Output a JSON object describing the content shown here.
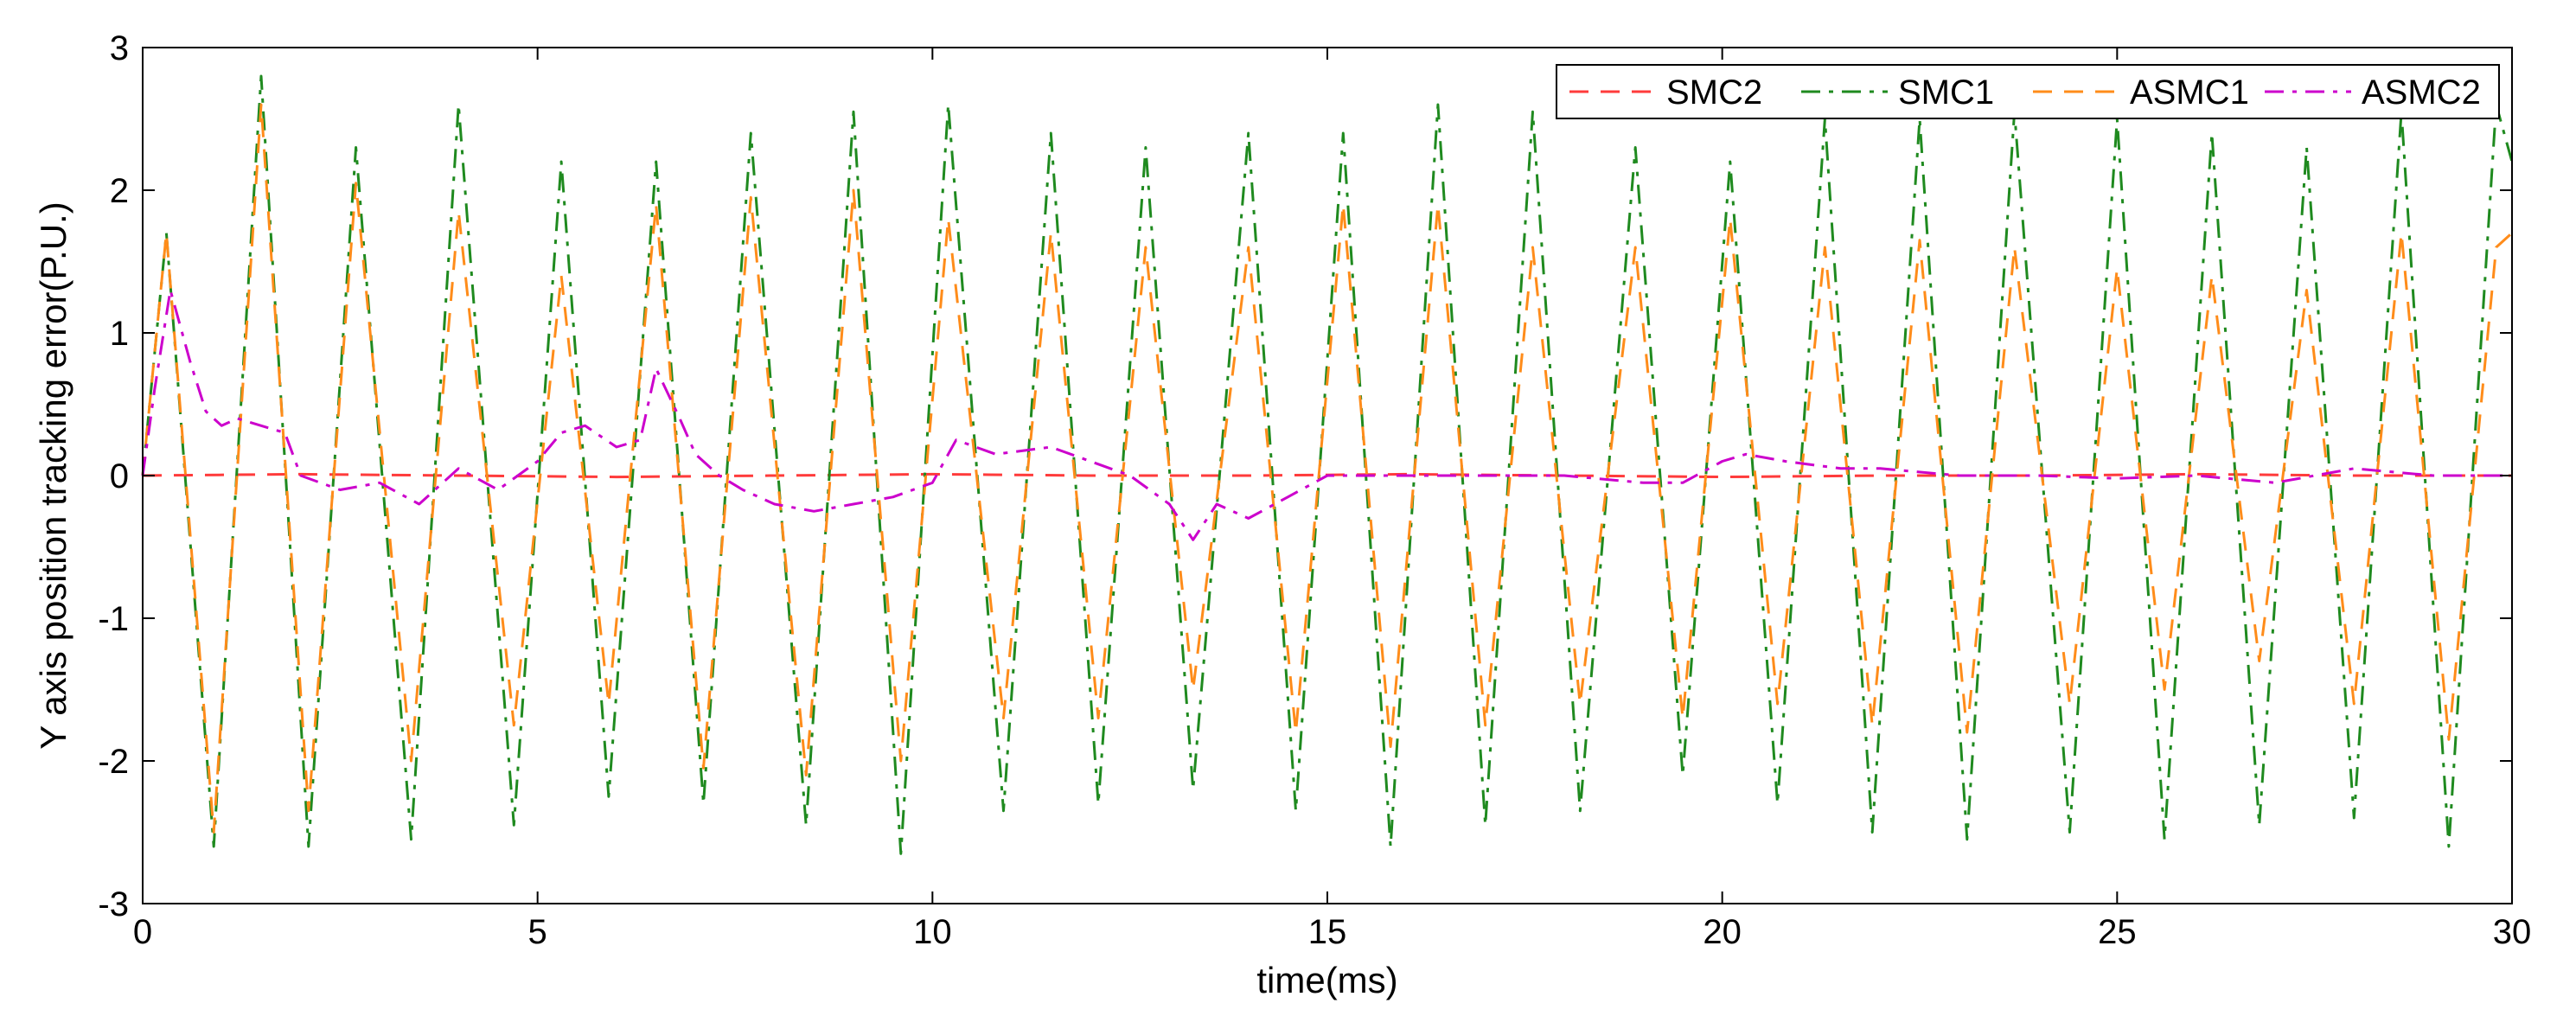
{
  "chart_data": {
    "type": "line",
    "title": "",
    "xlabel": "time(ms)",
    "ylabel": "Y axis position tracking error(P.U.)",
    "xlim": [
      0,
      30
    ],
    "ylim": [
      -3,
      3
    ],
    "x_ticks": [
      0,
      5,
      10,
      15,
      20,
      25,
      30
    ],
    "x_tick_labels": [
      "0",
      "5",
      "10",
      "15",
      "20",
      "25",
      "30"
    ],
    "y_ticks": [
      -3,
      -2,
      -1,
      0,
      1,
      2,
      3
    ],
    "y_tick_labels": [
      "-3",
      "-2",
      "-1",
      "0",
      "1",
      "2",
      "3"
    ],
    "grid": false,
    "legend_position": "top-right",
    "series": [
      {
        "name": "SMC2",
        "color": "#ff3b3b",
        "style": "dashed",
        "x": [
          0,
          2,
          4,
          6,
          8,
          10,
          12,
          14,
          16,
          18,
          20,
          22,
          24,
          26,
          28,
          30
        ],
        "y": [
          0,
          0.01,
          0,
          -0.01,
          0,
          0.01,
          0,
          0,
          0.01,
          0,
          -0.01,
          0,
          0,
          0.01,
          0,
          0
        ]
      },
      {
        "name": "SMC1",
        "color": "#1f8a1f",
        "style": "dashdot",
        "x": [
          0,
          0.3,
          0.9,
          1.5,
          2.1,
          2.7,
          3.4,
          4.0,
          4.7,
          5.3,
          5.9,
          6.5,
          7.1,
          7.7,
          8.4,
          9.0,
          9.6,
          10.2,
          10.9,
          11.5,
          12.1,
          12.7,
          13.3,
          14.0,
          14.6,
          15.2,
          15.8,
          16.4,
          17.0,
          17.6,
          18.2,
          18.9,
          19.5,
          20.1,
          20.7,
          21.3,
          21.9,
          22.5,
          23.1,
          23.7,
          24.4,
          25.0,
          25.6,
          26.2,
          26.8,
          27.4,
          28.0,
          28.6,
          29.2,
          29.8,
          30.0
        ],
        "y": [
          0,
          1.7,
          -2.6,
          2.8,
          -2.6,
          2.3,
          -2.55,
          2.6,
          -2.45,
          2.2,
          -2.25,
          2.2,
          -2.3,
          2.4,
          -2.45,
          2.55,
          -2.65,
          2.6,
          -2.35,
          2.4,
          -2.3,
          2.3,
          -2.2,
          2.4,
          -2.35,
          2.4,
          -2.6,
          2.6,
          -2.45,
          2.55,
          -2.35,
          2.3,
          -2.1,
          2.2,
          -2.3,
          2.5,
          -2.5,
          2.5,
          -2.55,
          2.55,
          -2.5,
          2.5,
          -2.55,
          2.4,
          -2.45,
          2.3,
          -2.4,
          2.55,
          -2.6,
          2.6,
          2.2
        ]
      },
      {
        "name": "ASMC1",
        "color": "#ff8c1a",
        "style": "dashed",
        "x": [
          0,
          0.3,
          0.9,
          1.5,
          2.1,
          2.7,
          3.4,
          4.0,
          4.7,
          5.3,
          5.9,
          6.5,
          7.1,
          7.7,
          8.4,
          9.0,
          9.6,
          10.2,
          10.9,
          11.5,
          12.1,
          12.7,
          13.3,
          14.0,
          14.6,
          15.2,
          15.8,
          16.4,
          17.0,
          17.6,
          18.2,
          18.9,
          19.5,
          20.1,
          20.7,
          21.3,
          21.9,
          22.5,
          23.1,
          23.7,
          24.4,
          25.0,
          25.6,
          26.2,
          26.8,
          27.4,
          28.0,
          28.6,
          29.2,
          29.8,
          30.0
        ],
        "y": [
          0,
          1.7,
          -2.5,
          2.6,
          -2.35,
          2.05,
          -2.0,
          1.85,
          -1.75,
          1.4,
          -1.6,
          1.9,
          -2.05,
          1.95,
          -2.1,
          2.0,
          -2.0,
          1.8,
          -1.7,
          1.7,
          -1.7,
          1.6,
          -1.5,
          1.6,
          -1.8,
          1.9,
          -1.9,
          1.9,
          -1.75,
          1.6,
          -1.6,
          1.6,
          -1.7,
          1.8,
          -1.6,
          1.6,
          -1.75,
          1.65,
          -1.8,
          1.6,
          -1.6,
          1.45,
          -1.5,
          1.4,
          -1.3,
          1.3,
          -1.6,
          1.7,
          -1.85,
          1.6,
          1.7
        ]
      },
      {
        "name": "ASMC2",
        "color": "#cc00cc",
        "style": "dashdot",
        "x": [
          0,
          0.15,
          0.35,
          0.6,
          0.8,
          1.0,
          1.2,
          1.5,
          1.8,
          2.0,
          2.5,
          3.0,
          3.5,
          4.0,
          4.5,
          5.0,
          5.3,
          5.6,
          6.0,
          6.3,
          6.5,
          6.8,
          7.0,
          7.3,
          7.6,
          8.0,
          8.5,
          9.0,
          9.5,
          10.0,
          10.3,
          10.8,
          11.5,
          12.0,
          12.5,
          13.0,
          13.3,
          13.6,
          14.0,
          14.5,
          15.0,
          16.0,
          17.0,
          18.0,
          19.0,
          19.5,
          20.0,
          20.3,
          20.8,
          21.5,
          22.0,
          23.0,
          24.0,
          25.0,
          26.0,
          27.0,
          28.0,
          29.0,
          30.0
        ],
        "y": [
          0,
          0.6,
          1.3,
          0.8,
          0.45,
          0.35,
          0.4,
          0.35,
          0.3,
          0.0,
          -0.1,
          -0.05,
          -0.2,
          0.05,
          -0.1,
          0.1,
          0.3,
          0.35,
          0.2,
          0.25,
          0.75,
          0.4,
          0.15,
          0.0,
          -0.1,
          -0.2,
          -0.25,
          -0.2,
          -0.15,
          -0.05,
          0.25,
          0.15,
          0.2,
          0.1,
          0.0,
          -0.2,
          -0.45,
          -0.2,
          -0.3,
          -0.15,
          0.0,
          0.0,
          0.0,
          0.0,
          -0.05,
          -0.05,
          0.1,
          0.15,
          0.1,
          0.05,
          0.05,
          0.0,
          0.0,
          -0.02,
          0.0,
          -0.05,
          0.05,
          0.0,
          0.0
        ]
      }
    ]
  }
}
